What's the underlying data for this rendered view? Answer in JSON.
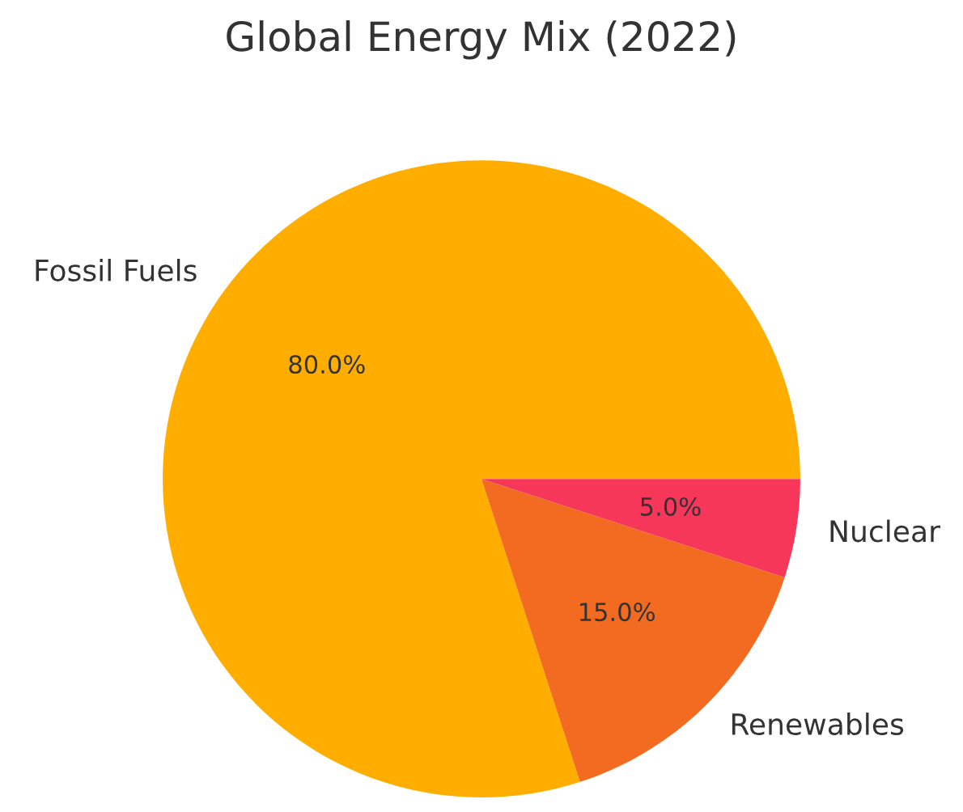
{
  "chart_data": {
    "type": "pie",
    "title": "Global Energy Mix (2022)",
    "categories": [
      "Fossil Fuels",
      "Renewables",
      "Nuclear"
    ],
    "values": [
      80,
      15,
      5
    ],
    "value_labels": [
      "80.0%",
      "15.0%",
      "5.0%"
    ],
    "colors": [
      "#ffae00",
      "#f26b21",
      "#f7375a"
    ]
  }
}
